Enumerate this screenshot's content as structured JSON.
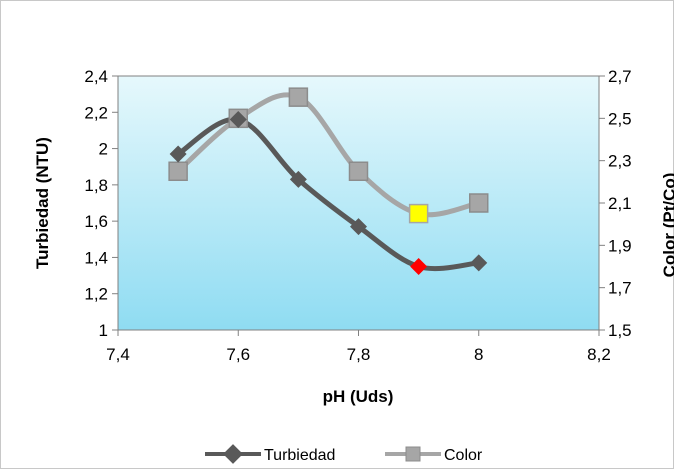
{
  "chart_data": {
    "type": "line",
    "xlabel": "pH (Uds)",
    "ylabel": "Turbiedad (NTU)",
    "y2label": "Color  (Pt/Co)",
    "xlim": [
      7.4,
      8.2
    ],
    "xticks": [
      "7,4",
      "7,6",
      "7,8",
      "8",
      "8,2"
    ],
    "xtick_values": [
      7.4,
      7.6,
      7.8,
      8.0,
      8.2
    ],
    "ylim": [
      1,
      2.4
    ],
    "yticks": [
      "1",
      "1,2",
      "1,4",
      "1,6",
      "1,8",
      "2",
      "2,2",
      "2,4"
    ],
    "ytick_values": [
      1,
      1.2,
      1.4,
      1.6,
      1.8,
      2.0,
      2.2,
      2.4
    ],
    "y2lim": [
      1.5,
      2.7
    ],
    "y2ticks": [
      "1,5",
      "1,7",
      "1,9",
      "2,1",
      "2,3",
      "2,5",
      "2,7"
    ],
    "y2tick_values": [
      1.5,
      1.7,
      1.9,
      2.1,
      2.3,
      2.5,
      2.7
    ],
    "legend_position": "bottom",
    "series": [
      {
        "name": "Turbiedad",
        "axis": "left",
        "x": [
          7.5,
          7.6,
          7.7,
          7.8,
          7.9,
          8.0
        ],
        "y": [
          1.97,
          2.16,
          1.83,
          1.57,
          1.35,
          1.37
        ],
        "color": "#595959",
        "marker": "diamond",
        "highlight_index": 4,
        "highlight_color": "#ff0000"
      },
      {
        "name": "Color",
        "axis": "right",
        "x": [
          7.5,
          7.6,
          7.7,
          7.8,
          7.9,
          8.0
        ],
        "y": [
          2.25,
          2.5,
          2.6,
          2.25,
          2.05,
          2.1
        ],
        "color": "#a6a6a6",
        "marker": "square",
        "highlight_index": 4,
        "highlight_color": "#ffff00"
      }
    ]
  }
}
